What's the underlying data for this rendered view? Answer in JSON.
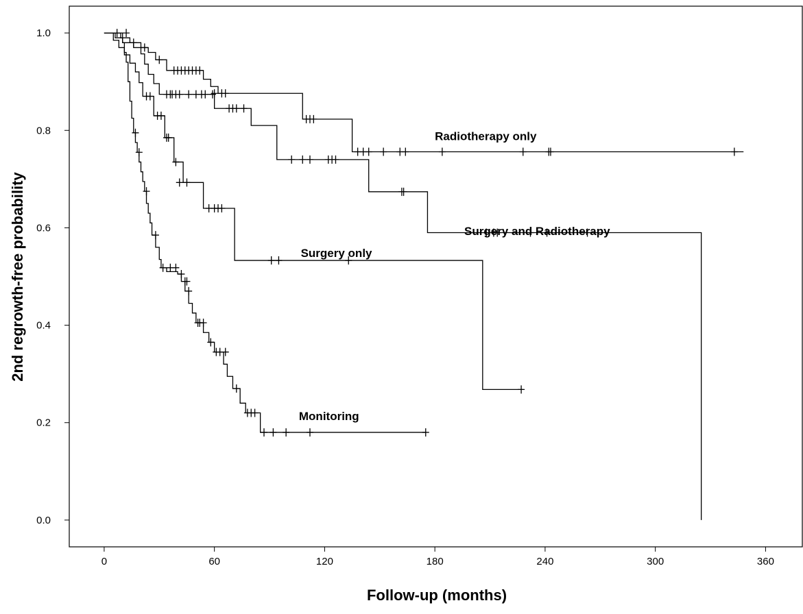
{
  "chart_data": {
    "type": "line",
    "subtype": "kaplan-meier-step",
    "xlabel": "Follow-up (months)",
    "ylabel": "2nd regrowth-free probability",
    "xlim": [
      -19,
      380
    ],
    "ylim": [
      -0.055,
      1.055
    ],
    "xticks": [
      0,
      60,
      120,
      180,
      240,
      300,
      360
    ],
    "yticks": [
      0.0,
      0.2,
      0.4,
      0.6,
      0.8,
      1.0
    ],
    "xtick_labels": [
      "0",
      "60",
      "120",
      "180",
      "240",
      "300",
      "360"
    ],
    "ytick_labels": [
      "0.0",
      "0.2",
      "0.4",
      "0.6",
      "0.8",
      "1.0"
    ],
    "grid": false,
    "legend": "none",
    "line_color": "#000000",
    "series": [
      {
        "name": "Radiotherapy only",
        "steps": [
          [
            0,
            1.0
          ],
          [
            9,
            0.99
          ],
          [
            14,
            0.98
          ],
          [
            20,
            0.97
          ],
          [
            24,
            0.96
          ],
          [
            28,
            0.945
          ],
          [
            34,
            0.923
          ],
          [
            54,
            0.905
          ],
          [
            58,
            0.89
          ],
          [
            62,
            0.876
          ],
          [
            108,
            0.823
          ],
          [
            135,
            0.756
          ]
        ],
        "end_x": 348,
        "censored": [
          [
            7,
            1.0
          ],
          [
            12,
            1.0
          ],
          [
            16,
            0.98
          ],
          [
            22,
            0.97
          ],
          [
            30,
            0.945
          ],
          [
            38,
            0.923
          ],
          [
            40,
            0.923
          ],
          [
            42,
            0.923
          ],
          [
            44,
            0.923
          ],
          [
            46,
            0.923
          ],
          [
            48,
            0.923
          ],
          [
            50,
            0.923
          ],
          [
            52,
            0.923
          ],
          [
            60,
            0.876
          ],
          [
            64,
            0.876
          ],
          [
            66,
            0.876
          ],
          [
            110,
            0.823
          ],
          [
            112,
            0.823
          ],
          [
            114,
            0.823
          ],
          [
            138,
            0.756
          ],
          [
            141,
            0.756
          ],
          [
            144,
            0.756
          ],
          [
            152,
            0.756
          ],
          [
            161,
            0.756
          ],
          [
            164,
            0.756
          ],
          [
            184,
            0.756
          ],
          [
            228,
            0.756
          ],
          [
            242,
            0.756
          ],
          [
            243,
            0.756
          ],
          [
            343,
            0.756
          ]
        ]
      },
      {
        "name": "Surgery and Radiotherapy",
        "steps": [
          [
            0,
            1.0
          ],
          [
            6,
            0.99
          ],
          [
            10,
            0.98
          ],
          [
            16,
            0.97
          ],
          [
            20,
            0.957
          ],
          [
            22,
            0.936
          ],
          [
            24,
            0.915
          ],
          [
            27,
            0.896
          ],
          [
            30,
            0.874
          ],
          [
            60,
            0.845
          ],
          [
            74,
            0.845
          ],
          [
            80,
            0.81
          ],
          [
            94,
            0.74
          ],
          [
            144,
            0.674
          ],
          [
            176,
            0.59
          ],
          [
            325,
            0.0
          ]
        ],
        "end_x": 325,
        "censored": [
          [
            34,
            0.874
          ],
          [
            36,
            0.874
          ],
          [
            37,
            0.874
          ],
          [
            39,
            0.874
          ],
          [
            41,
            0.874
          ],
          [
            46,
            0.874
          ],
          [
            50,
            0.874
          ],
          [
            53,
            0.874
          ],
          [
            55,
            0.874
          ],
          [
            59,
            0.874
          ],
          [
            68,
            0.845
          ],
          [
            70,
            0.845
          ],
          [
            72,
            0.845
          ],
          [
            76,
            0.845
          ],
          [
            102,
            0.74
          ],
          [
            108,
            0.74
          ],
          [
            112,
            0.74
          ],
          [
            122,
            0.74
          ],
          [
            124,
            0.74
          ],
          [
            126,
            0.74
          ],
          [
            162,
            0.674
          ],
          [
            163,
            0.674
          ],
          [
            208,
            0.59
          ],
          [
            212,
            0.59
          ],
          [
            214,
            0.59
          ],
          [
            232,
            0.59
          ],
          [
            241,
            0.59
          ],
          [
            263,
            0.59
          ]
        ]
      },
      {
        "name": "Surgery only",
        "steps": [
          [
            0,
            1.0
          ],
          [
            5,
            0.985
          ],
          [
            8,
            0.97
          ],
          [
            11,
            0.955
          ],
          [
            14,
            0.938
          ],
          [
            17,
            0.92
          ],
          [
            19,
            0.898
          ],
          [
            21,
            0.87
          ],
          [
            27,
            0.83
          ],
          [
            33,
            0.785
          ],
          [
            38,
            0.735
          ],
          [
            43,
            0.693
          ],
          [
            54,
            0.64
          ],
          [
            71,
            0.533
          ],
          [
            206,
            0.268
          ]
        ],
        "end_x": 228,
        "censored": [
          [
            23,
            0.87
          ],
          [
            25,
            0.87
          ],
          [
            29,
            0.83
          ],
          [
            31,
            0.83
          ],
          [
            34,
            0.785
          ],
          [
            35,
            0.785
          ],
          [
            39,
            0.735
          ],
          [
            41,
            0.693
          ],
          [
            45,
            0.693
          ],
          [
            57,
            0.64
          ],
          [
            60,
            0.64
          ],
          [
            62,
            0.64
          ],
          [
            64,
            0.64
          ],
          [
            91,
            0.533
          ],
          [
            95,
            0.533
          ],
          [
            133,
            0.533
          ],
          [
            227,
            0.268
          ]
        ]
      },
      {
        "name": "Monitoring",
        "steps": [
          [
            0,
            1.0
          ],
          [
            10,
            0.98
          ],
          [
            11,
            0.96
          ],
          [
            12,
            0.94
          ],
          [
            13,
            0.9
          ],
          [
            14,
            0.86
          ],
          [
            15,
            0.825
          ],
          [
            16,
            0.795
          ],
          [
            17,
            0.775
          ],
          [
            18,
            0.755
          ],
          [
            19,
            0.735
          ],
          [
            20,
            0.715
          ],
          [
            21,
            0.695
          ],
          [
            22,
            0.675
          ],
          [
            23,
            0.65
          ],
          [
            24,
            0.63
          ],
          [
            25,
            0.61
          ],
          [
            26,
            0.585
          ],
          [
            28,
            0.56
          ],
          [
            30,
            0.535
          ],
          [
            31,
            0.518
          ],
          [
            34,
            0.51
          ],
          [
            40,
            0.505
          ],
          [
            42,
            0.49
          ],
          [
            44,
            0.47
          ],
          [
            46,
            0.445
          ],
          [
            48,
            0.425
          ],
          [
            50,
            0.405
          ],
          [
            54,
            0.385
          ],
          [
            57,
            0.365
          ],
          [
            60,
            0.345
          ],
          [
            65,
            0.32
          ],
          [
            67,
            0.295
          ],
          [
            70,
            0.27
          ],
          [
            74,
            0.24
          ],
          [
            77,
            0.22
          ],
          [
            85,
            0.18
          ]
        ],
        "end_x": 175,
        "censored": [
          [
            17,
            0.795
          ],
          [
            19,
            0.755
          ],
          [
            23,
            0.675
          ],
          [
            28,
            0.585
          ],
          [
            32,
            0.518
          ],
          [
            36,
            0.518
          ],
          [
            39,
            0.518
          ],
          [
            42,
            0.505
          ],
          [
            44,
            0.49
          ],
          [
            45,
            0.49
          ],
          [
            46,
            0.47
          ],
          [
            51,
            0.405
          ],
          [
            52,
            0.405
          ],
          [
            54,
            0.405
          ],
          [
            58,
            0.365
          ],
          [
            61,
            0.345
          ],
          [
            63,
            0.345
          ],
          [
            66,
            0.345
          ],
          [
            72,
            0.27
          ],
          [
            78,
            0.22
          ],
          [
            80,
            0.22
          ],
          [
            82,
            0.22
          ],
          [
            87,
            0.18
          ],
          [
            92,
            0.18
          ],
          [
            99,
            0.18
          ],
          [
            112,
            0.18
          ],
          [
            175,
            0.18
          ]
        ]
      }
    ],
    "annotations": [
      {
        "text": "Radiotherapy only",
        "at": [
          180,
          0.78
        ]
      },
      {
        "text": "Surgery and Radiotherapy",
        "at": [
          196,
          0.585
        ]
      },
      {
        "text": "Surgery only",
        "at": [
          107,
          0.54
        ]
      },
      {
        "text": "Monitoring",
        "at": [
          106,
          0.205
        ]
      }
    ]
  }
}
